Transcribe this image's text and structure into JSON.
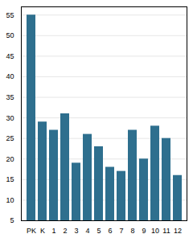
{
  "chart_data": {
    "type": "bar",
    "categories": [
      "PK",
      "K",
      "1",
      "2",
      "3",
      "4",
      "5",
      "6",
      "7",
      "8",
      "9",
      "10",
      "11",
      "12"
    ],
    "values": [
      55,
      29,
      27,
      31,
      19,
      26,
      23,
      18,
      17,
      27,
      20,
      28,
      25,
      16
    ],
    "color": "#2e6f8e",
    "ylim": [
      5,
      57
    ],
    "yticks": [
      5,
      10,
      15,
      20,
      25,
      30,
      35,
      40,
      45,
      50,
      55
    ],
    "grid": true
  }
}
